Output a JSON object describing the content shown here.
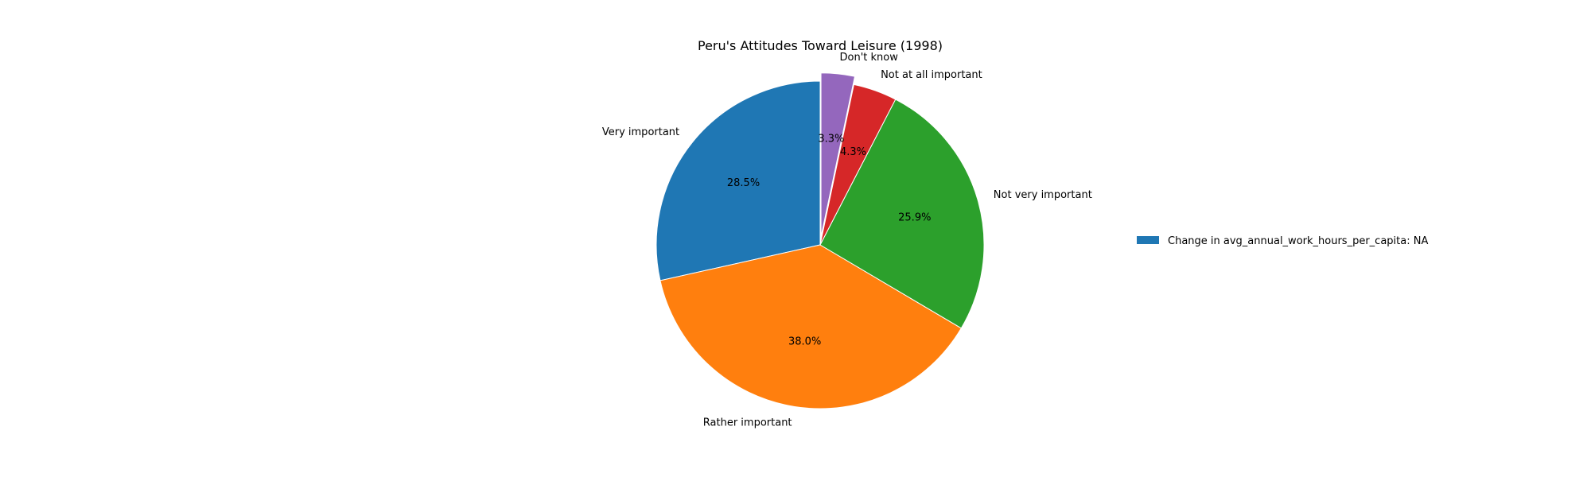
{
  "chart_data": {
    "type": "pie",
    "title": "Peru's Attitudes Toward Leisure (1998)",
    "slices": [
      {
        "label": "Very important",
        "value": 28.5,
        "pct_label": "28.5%",
        "color": "#1f77b4",
        "exploded": false
      },
      {
        "label": "Rather important",
        "value": 38.0,
        "pct_label": "38.0%",
        "color": "#ff7f0e",
        "exploded": false
      },
      {
        "label": "Not very important",
        "value": 25.9,
        "pct_label": "25.9%",
        "color": "#2ca02c",
        "exploded": false
      },
      {
        "label": "Not at all important",
        "value": 4.3,
        "pct_label": "4.3%",
        "color": "#d62728",
        "exploded": false
      },
      {
        "label": "Don't know",
        "value": 3.3,
        "pct_label": "3.3%",
        "color": "#9467bd",
        "exploded": true
      }
    ],
    "start_angle_deg": 90,
    "direction": "counterclockwise",
    "legend": {
      "placement": "right",
      "entries": [
        {
          "label": "Change in avg_annual_work_hours_per_capita: NA",
          "color": "#1f77b4"
        }
      ]
    }
  }
}
